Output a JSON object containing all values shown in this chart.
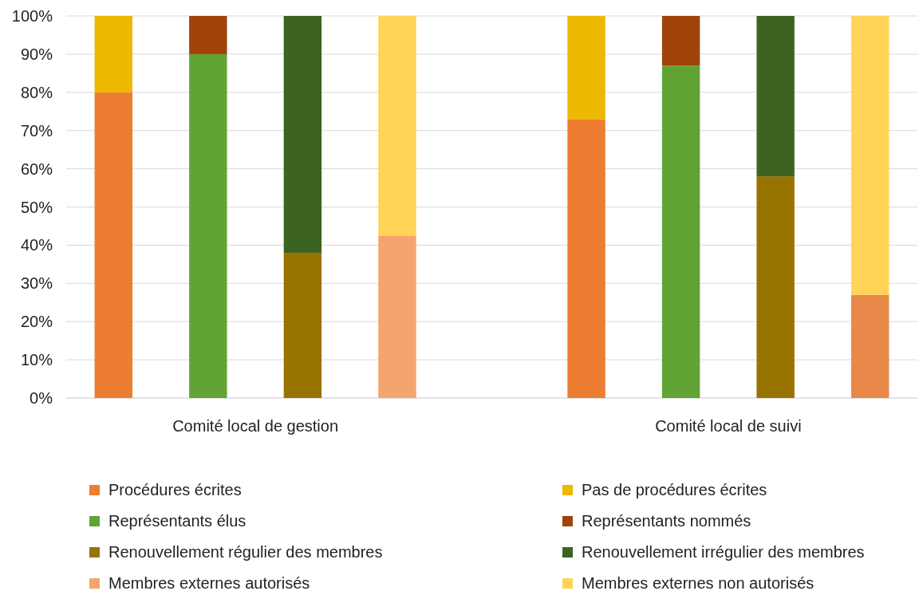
{
  "chart_data": {
    "type": "bar",
    "stacked": true,
    "categories": [
      null,
      null,
      null,
      null,
      null,
      null,
      null,
      null,
      null
    ],
    "series": [
      {
        "name": "Procédures écrites",
        "color": "#ed7d31",
        "values": [
          80,
          null,
          null,
          null,
          null,
          73,
          null,
          null,
          null
        ]
      },
      {
        "name": "Pas de procédures écrites",
        "color": "#ecb800",
        "values": [
          20,
          null,
          null,
          null,
          null,
          27,
          null,
          null,
          null
        ]
      },
      {
        "name": "Représentants élus",
        "color": "#62a335",
        "values": [
          null,
          90,
          null,
          null,
          null,
          null,
          87,
          null,
          null
        ]
      },
      {
        "name": "Représentants nommés",
        "color": "#a0430a",
        "values": [
          null,
          10,
          null,
          null,
          null,
          null,
          13,
          null,
          null
        ]
      },
      {
        "name": "Renouvellement régulier des membres",
        "color": "#997300",
        "values": [
          null,
          null,
          38,
          null,
          null,
          null,
          null,
          58,
          null
        ]
      },
      {
        "name": "Renouvellement irrégulier des membres",
        "color": "#3d6321",
        "values": [
          null,
          null,
          62,
          null,
          null,
          null,
          null,
          42,
          null
        ]
      },
      {
        "name": "Membres externes autorisés",
        "color": "#f4a46f",
        "colors": [
          null,
          null,
          null,
          "#f4a46f",
          null,
          null,
          null,
          null,
          "#e8894a"
        ],
        "values": [
          null,
          null,
          null,
          42.5,
          null,
          null,
          null,
          null,
          27
        ]
      },
      {
        "name": "Membres externes non autorisés",
        "color": "#ffd457",
        "values": [
          null,
          null,
          null,
          57.5,
          null,
          null,
          null,
          null,
          73
        ]
      }
    ],
    "annotations": [
      "Comité local de gestion",
      "Comité local de suivi"
    ],
    "ylim": [
      0,
      100
    ],
    "yticks": [
      {
        "value": 0,
        "label": "0%"
      },
      {
        "value": 10,
        "label": "10%"
      },
      {
        "value": 20,
        "label": "20%"
      },
      {
        "value": 30,
        "label": "30%"
      },
      {
        "value": 40,
        "label": "40%"
      },
      {
        "value": 50,
        "label": "50%"
      },
      {
        "value": 60,
        "label": "60%"
      },
      {
        "value": 70,
        "label": "70%"
      },
      {
        "value": 80,
        "label": "80%"
      },
      {
        "value": 90,
        "label": "90%"
      },
      {
        "value": 100,
        "label": "100%"
      }
    ],
    "grid": "y",
    "legend": "bottom"
  }
}
